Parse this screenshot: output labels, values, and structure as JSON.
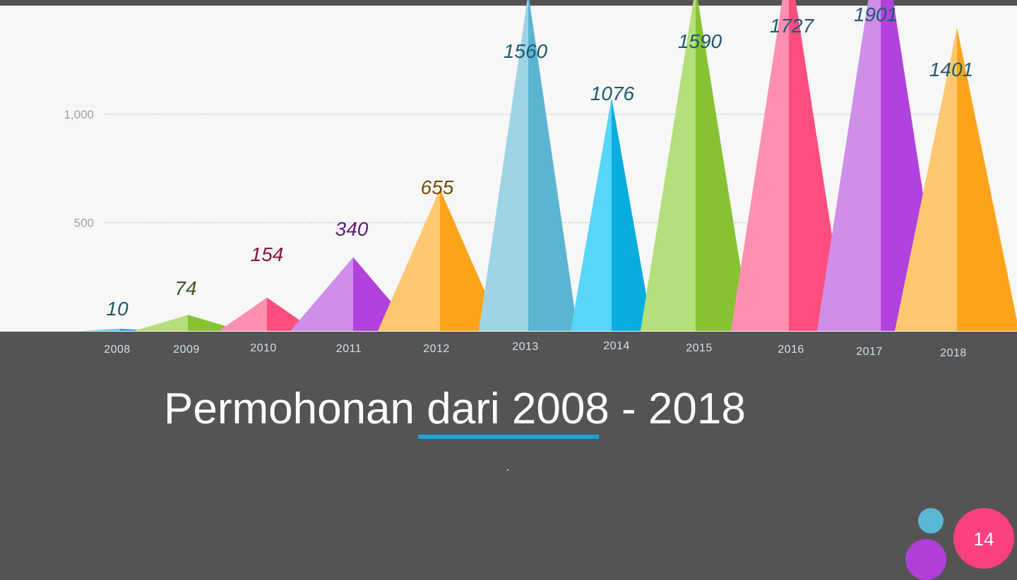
{
  "slide": {
    "title": "Permohonan dari 2008 - 2018",
    "footnote_mark": ".",
    "page_number": "14"
  },
  "chart_data": {
    "type": "bar",
    "style": "pyramid",
    "title": "",
    "xlabel": "",
    "ylabel": "",
    "categories": [
      "2008",
      "2009",
      "2010",
      "2011",
      "2012",
      "2013",
      "2014",
      "2015",
      "2016",
      "2017",
      "2018"
    ],
    "values": [
      10,
      74,
      154,
      340,
      655,
      1560,
      1076,
      1590,
      1727,
      1901,
      1401
    ],
    "data_labels": [
      "10",
      "74",
      "154",
      "340",
      "655",
      "1560",
      "1076",
      "1590",
      "1727",
      "1901",
      "1401"
    ],
    "ylim": [
      0,
      1000
    ],
    "yticks": [
      500,
      1000
    ],
    "ytick_labels": [
      "500",
      "1,000"
    ],
    "grid": true,
    "colors": [
      {
        "light": "#57c7ec",
        "dark": "#21a6dc",
        "label": "#1f5a6b"
      },
      {
        "light": "#b5df7a",
        "dark": "#86c232",
        "label": "#3d5a1e"
      },
      {
        "light": "#ff8fb0",
        "dark": "#ff4d80",
        "label": "#8a1538"
      },
      {
        "light": "#cf8fe8",
        "dark": "#b142dd",
        "label": "#5d1a79"
      },
      {
        "light": "#ffc76e",
        "dark": "#ffa31a",
        "label": "#7a4d00"
      },
      {
        "light": "#9fd3e6",
        "dark": "#5cb5d0",
        "label": "#1f5a6b"
      },
      {
        "light": "#57d5fb",
        "dark": "#06aee0",
        "label": "#1f5a6b"
      },
      {
        "light": "#b5df7a",
        "dark": "#86c232",
        "label": "#1f5a6b"
      },
      {
        "light": "#ff8fb0",
        "dark": "#ff4d80",
        "label": "#1f5a6b"
      },
      {
        "light": "#cf8fe8",
        "dark": "#b142dd",
        "label": "#1f5a6b"
      },
      {
        "light": "#ffc76e",
        "dark": "#ffa31a",
        "label": "#1f5a6b"
      }
    ]
  }
}
